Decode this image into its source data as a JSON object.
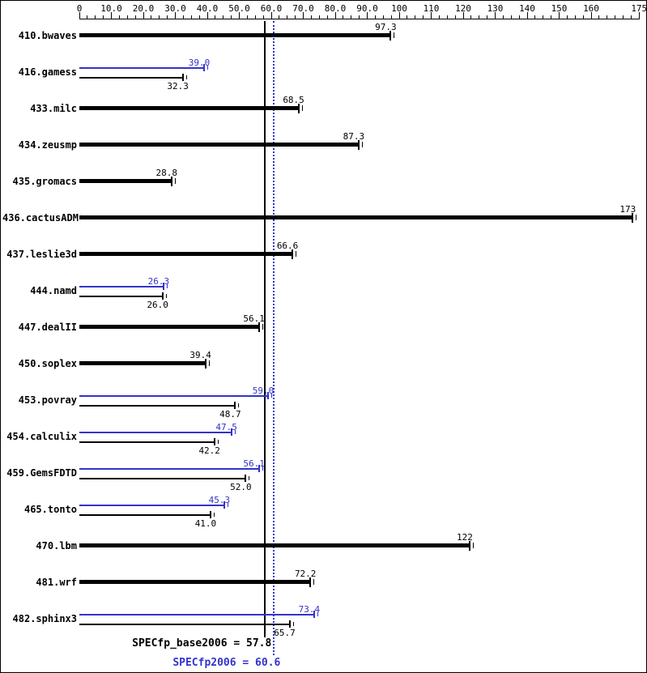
{
  "chart_data": {
    "type": "bar",
    "orientation": "horizontal",
    "title": "",
    "xlabel": "",
    "ylabel": "",
    "axis": {
      "min": 0,
      "max": 175,
      "minor_tick_step": 2.5,
      "major_ticks": [
        {
          "value": 0,
          "label": "0"
        },
        {
          "value": 10,
          "label": "10.0"
        },
        {
          "value": 20,
          "label": "20.0"
        },
        {
          "value": 30,
          "label": "30.0"
        },
        {
          "value": 40,
          "label": "40.0"
        },
        {
          "value": 50,
          "label": "50.0"
        },
        {
          "value": 60,
          "label": "60.0"
        },
        {
          "value": 70,
          "label": "70.0"
        },
        {
          "value": 80,
          "label": "80.0"
        },
        {
          "value": 90,
          "label": "90.0"
        },
        {
          "value": 100,
          "label": "100"
        },
        {
          "value": 110,
          "label": "110"
        },
        {
          "value": 120,
          "label": "120"
        },
        {
          "value": 130,
          "label": "130"
        },
        {
          "value": 140,
          "label": "140"
        },
        {
          "value": 150,
          "label": "150"
        },
        {
          "value": 160,
          "label": "160"
        },
        {
          "value": 175,
          "label": "175"
        }
      ]
    },
    "series_colors": {
      "base": "#000000",
      "peak": "#3333cc"
    },
    "benchmarks": [
      {
        "name": "410.bwaves",
        "base": {
          "value": 97.3,
          "label": "97.3"
        }
      },
      {
        "name": "416.gamess",
        "peak": {
          "value": 39.0,
          "label": "39.0"
        },
        "base": {
          "value": 32.3,
          "label": "32.3"
        }
      },
      {
        "name": "433.milc",
        "base": {
          "value": 68.5,
          "label": "68.5"
        }
      },
      {
        "name": "434.zeusmp",
        "base": {
          "value": 87.3,
          "label": "87.3"
        }
      },
      {
        "name": "435.gromacs",
        "base": {
          "value": 28.8,
          "label": "28.8"
        }
      },
      {
        "name": "436.cactusADM",
        "base": {
          "value": 173,
          "label": "173"
        }
      },
      {
        "name": "437.leslie3d",
        "base": {
          "value": 66.6,
          "label": "66.6"
        }
      },
      {
        "name": "444.namd",
        "peak": {
          "value": 26.3,
          "label": "26.3"
        },
        "base": {
          "value": 26.0,
          "label": "26.0"
        }
      },
      {
        "name": "447.dealII",
        "base": {
          "value": 56.1,
          "label": "56.1"
        }
      },
      {
        "name": "450.soplex",
        "base": {
          "value": 39.4,
          "label": "39.4"
        }
      },
      {
        "name": "453.povray",
        "peak": {
          "value": 59.0,
          "label": "59.0"
        },
        "base": {
          "value": 48.7,
          "label": "48.7"
        }
      },
      {
        "name": "454.calculix",
        "peak": {
          "value": 47.5,
          "label": "47.5"
        },
        "base": {
          "value": 42.2,
          "label": "42.2"
        }
      },
      {
        "name": "459.GemsFDTD",
        "peak": {
          "value": 56.1,
          "label": "56.1"
        },
        "base": {
          "value": 52.0,
          "label": "52.0"
        }
      },
      {
        "name": "465.tonto",
        "peak": {
          "value": 45.3,
          "label": "45.3"
        },
        "base": {
          "value": 41.0,
          "label": "41.0"
        }
      },
      {
        "name": "470.lbm",
        "base": {
          "value": 122,
          "label": "122"
        }
      },
      {
        "name": "481.wrf",
        "base": {
          "value": 72.2,
          "label": "72.2"
        }
      },
      {
        "name": "482.sphinx3",
        "peak": {
          "value": 73.4,
          "label": "73.4"
        },
        "base": {
          "value": 65.7,
          "label": "65.7"
        }
      }
    ],
    "means": {
      "base": {
        "value": 57.8,
        "label": "SPECfp_base2006 = 57.8",
        "line_style": "solid",
        "color": "#000000"
      },
      "peak": {
        "value": 60.6,
        "label": "SPECfp2006 = 60.6",
        "line_style": "dotted",
        "color": "#3333cc"
      }
    }
  }
}
